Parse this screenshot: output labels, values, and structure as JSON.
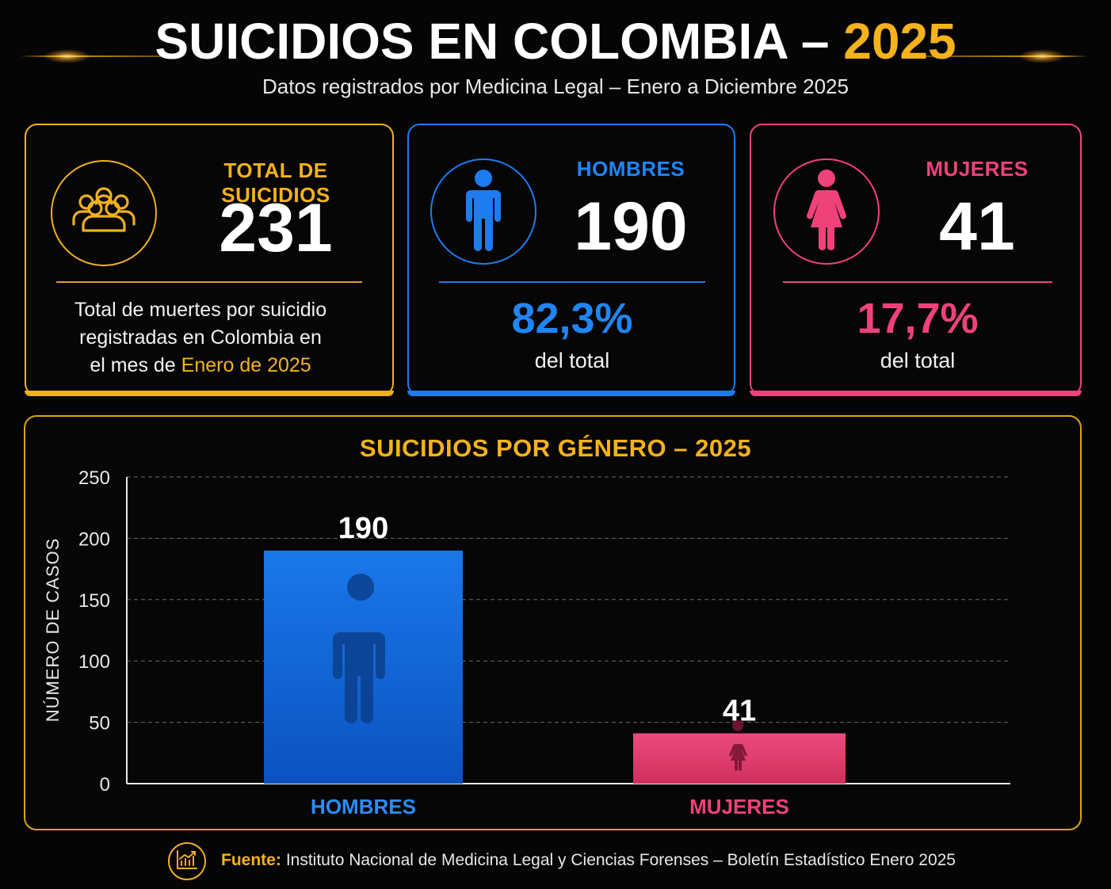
{
  "header": {
    "title_main": "SUICIDIOS EN COLOMBIA – ",
    "title_year": "2025",
    "subtitle": "Datos registrados por Medicina Legal – Enero a Diciembre 2025"
  },
  "cards": {
    "total": {
      "icon": "people-group-icon",
      "label": "TOTAL DE SUICIDIOS",
      "value": "231",
      "desc_line1": "Total de muertes por suicidio",
      "desc_line2": "registradas en Colombia en",
      "desc_line3_prefix": "el mes de ",
      "desc_line3_highlight": "Enero de 2025"
    },
    "men": {
      "icon": "man-icon",
      "label": "HOMBRES",
      "value": "190",
      "percent": "82,3%",
      "percent_sub": "del total"
    },
    "women": {
      "icon": "woman-icon",
      "label": "MUJERES",
      "value": "41",
      "percent": "17,7%",
      "percent_sub": "del total"
    }
  },
  "colors": {
    "gold": "#f5b21b",
    "men_blue": "#1c7cf0",
    "women_pink": "#f0427a",
    "background": "#050506"
  },
  "chart_data": {
    "type": "bar",
    "title": "SUICIDIOS POR GÉNERO – 2025",
    "ylabel": "NÚMERO DE CASOS",
    "xlabel": "",
    "categories": [
      "HOMBRES",
      "MUJERES"
    ],
    "values": [
      190,
      41
    ],
    "data_labels": [
      "190",
      "41"
    ],
    "ylim": [
      0,
      250
    ],
    "yticks": [
      0,
      50,
      100,
      150,
      200,
      250
    ],
    "grid": true,
    "bar_colors": [
      "#1c7cf0",
      "#f0427a"
    ],
    "bar_icons": [
      "man-icon",
      "woman-icon"
    ]
  },
  "footer": {
    "icon": "chart-growth-icon",
    "source_label": "Fuente:",
    "source_text": "Instituto Nacional de Medicina Legal y Ciencias Forenses – Boletín Estadístico Enero 2025"
  }
}
